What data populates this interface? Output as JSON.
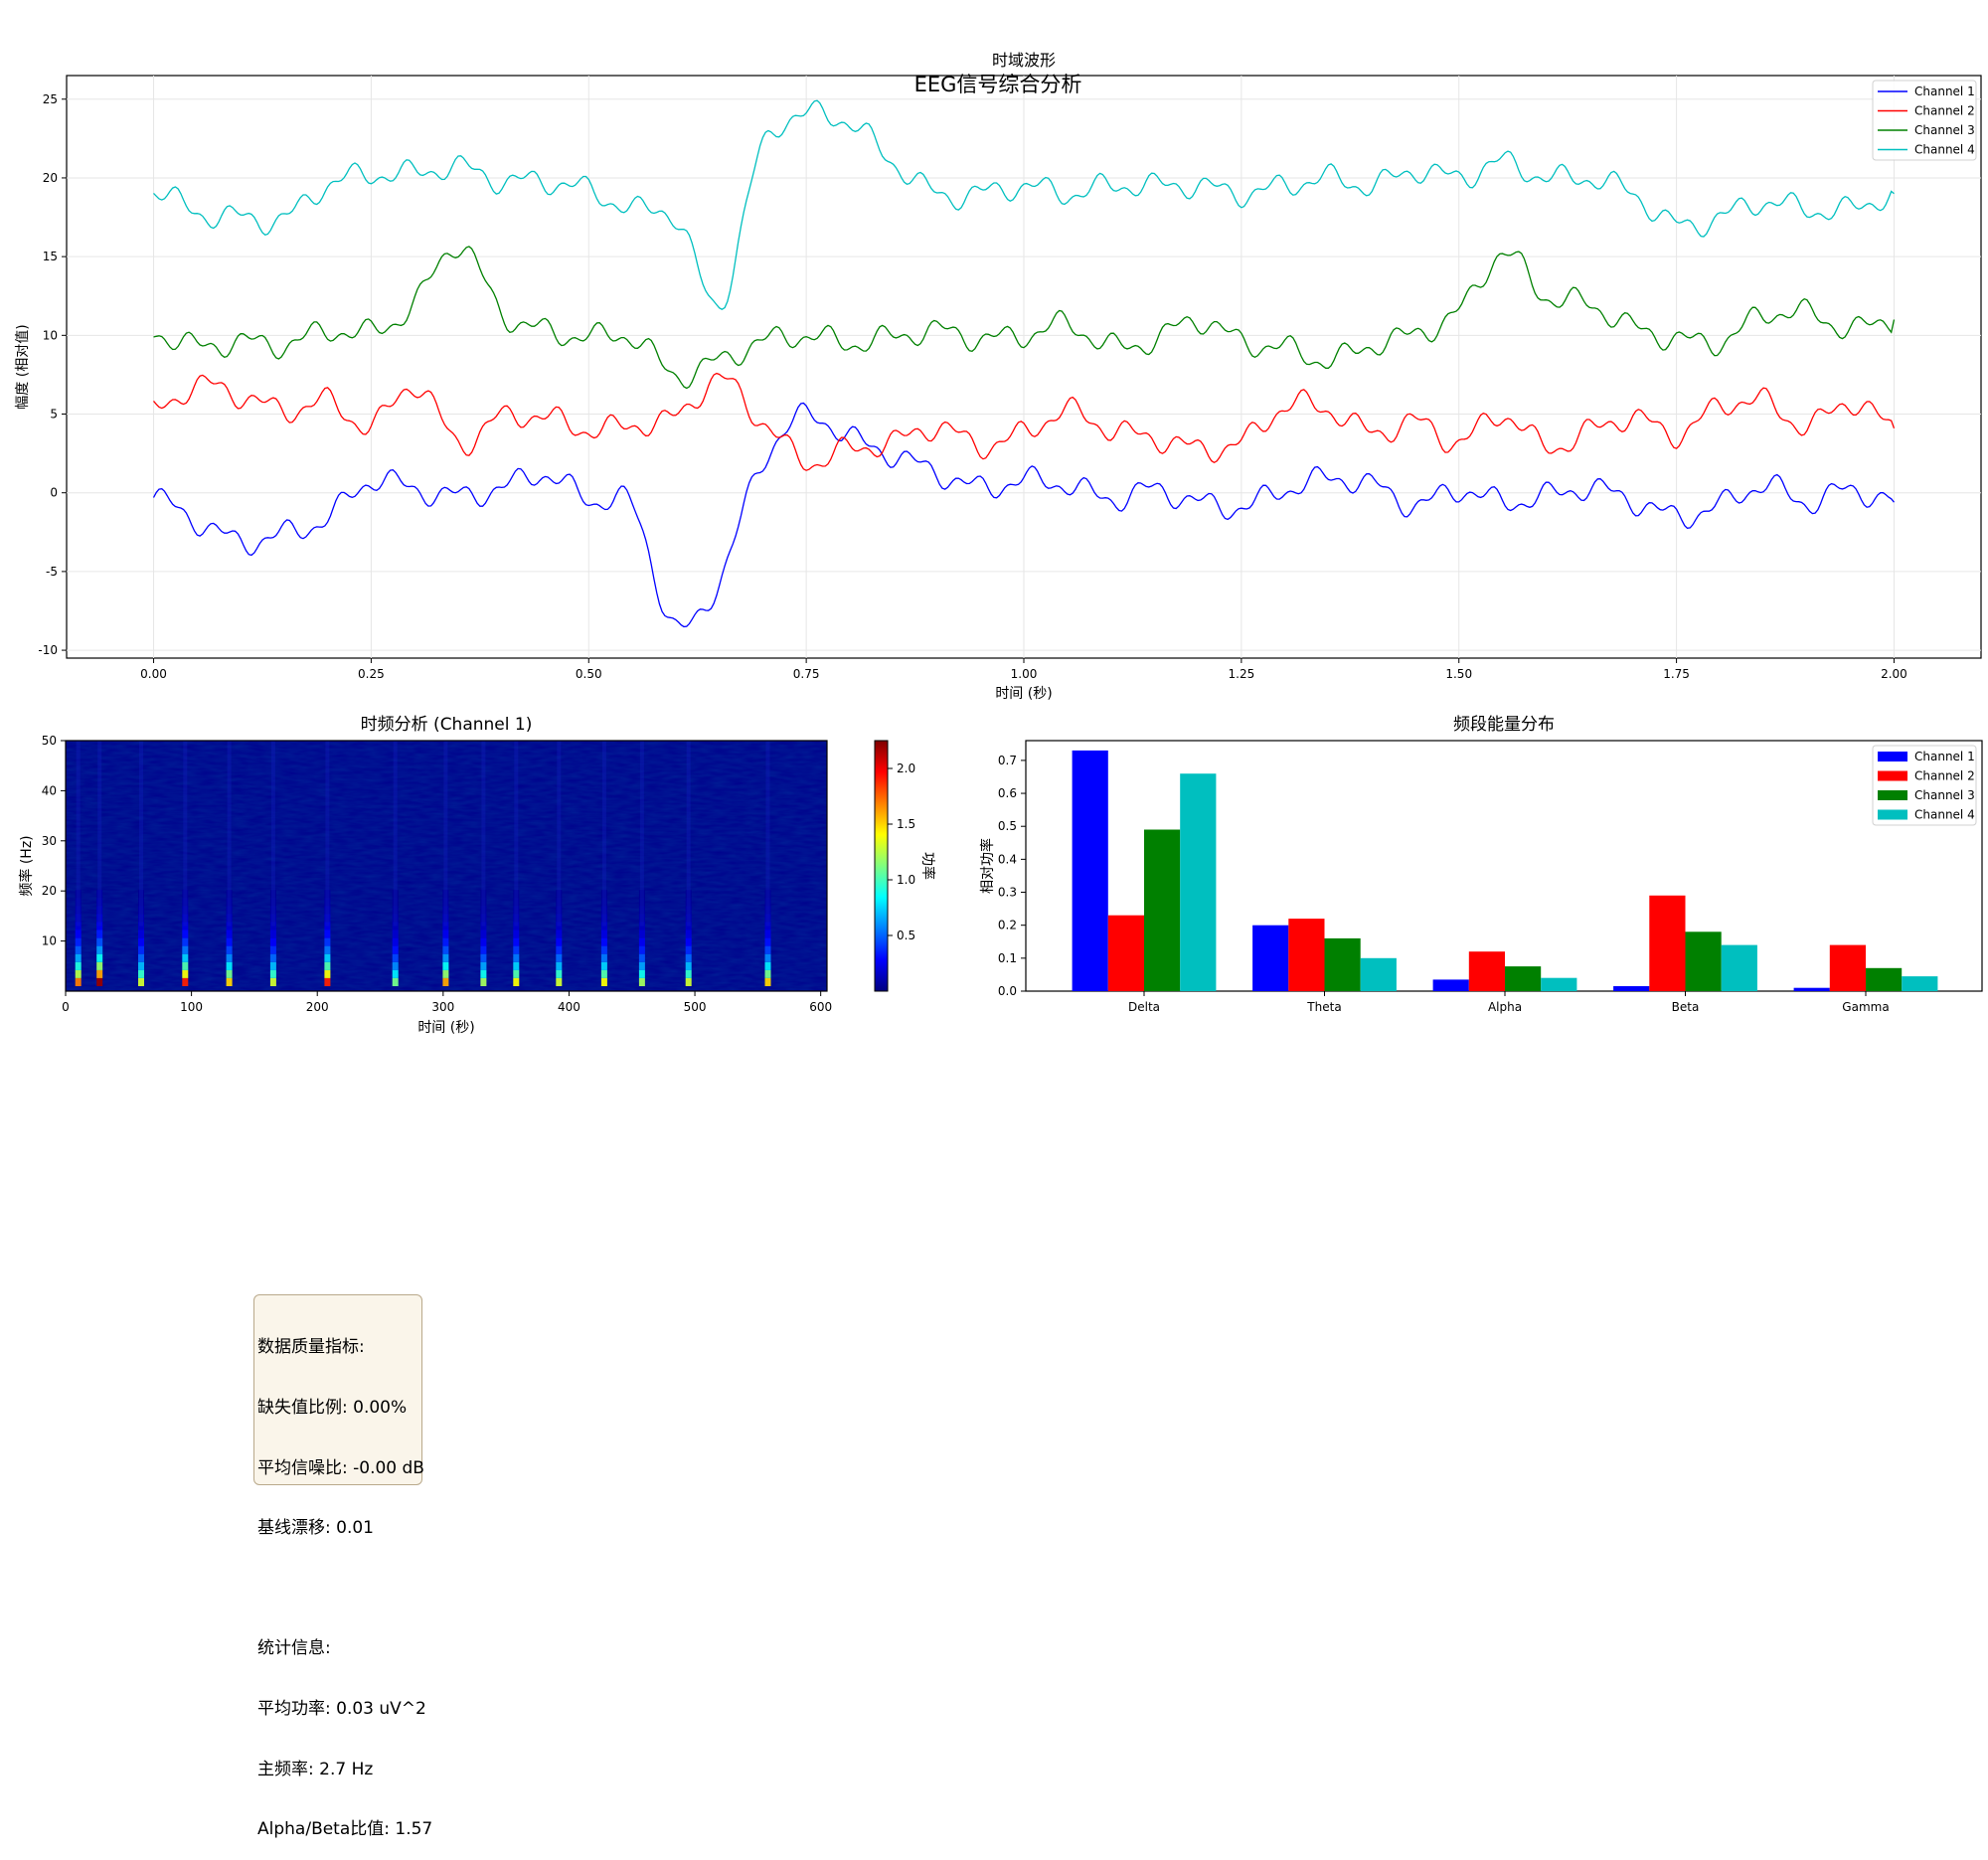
{
  "suptitle": "EEG信号综合分析",
  "chart_data": [
    {
      "type": "line",
      "title": "时域波形",
      "xlabel": "时间 (秒)",
      "ylabel": "幅度 (相对值)",
      "xlim": [
        -0.1,
        2.1
      ],
      "ylim": [
        -10.5,
        26.5
      ],
      "xticks": [
        "0.00",
        "0.25",
        "0.50",
        "0.75",
        "1.00",
        "1.25",
        "1.50",
        "1.75",
        "2.00"
      ],
      "yticks": [
        "-10",
        "-5",
        "0",
        "5",
        "10",
        "15",
        "20",
        "25"
      ],
      "grid": true,
      "legend_position": "top-right",
      "x": [
        0.0,
        0.05,
        0.1,
        0.15,
        0.2,
        0.25,
        0.3,
        0.35,
        0.4,
        0.45,
        0.5,
        0.55,
        0.6,
        0.65,
        0.7,
        0.75,
        0.8,
        0.85,
        0.9,
        0.95,
        1.0,
        1.05,
        1.1,
        1.15,
        1.2,
        1.25,
        1.3,
        1.35,
        1.4,
        1.45,
        1.5,
        1.55,
        1.6,
        1.65,
        1.7,
        1.75,
        1.8,
        1.85,
        1.9,
        1.95,
        2.0
      ],
      "series": [
        {
          "name": "Channel 1",
          "color": "#0000ff",
          "values": [
            -0.3,
            -1.8,
            -3.1,
            -2.6,
            -1.6,
            0.8,
            0.2,
            -0.2,
            0.3,
            1.2,
            -0.5,
            -0.9,
            -8.6,
            -5.5,
            2.0,
            4.9,
            3.5,
            2.4,
            1.3,
            0.3,
            0.8,
            0.5,
            -0.4,
            0.2,
            -0.6,
            -0.9,
            0.2,
            0.9,
            0.5,
            -0.8,
            0.2,
            -0.6,
            -0.2,
            0.3,
            -0.5,
            -1.5,
            -0.8,
            0.5,
            -0.6,
            0.2,
            -0.6
          ]
        },
        {
          "name": "Channel 2",
          "color": "#ff0000",
          "values": [
            5.2,
            6.8,
            6.2,
            5.2,
            5.8,
            4.2,
            6.9,
            3.2,
            4.8,
            4.8,
            4.0,
            4.3,
            4.8,
            7.2,
            4.5,
            2.0,
            2.8,
            3.2,
            4.2,
            3.0,
            3.8,
            5.2,
            4.0,
            3.5,
            2.8,
            3.2,
            5.5,
            5.3,
            3.8,
            4.5,
            3.2,
            5.0,
            2.9,
            3.9,
            4.8,
            3.7,
            5.5,
            5.8,
            4.2,
            5.8,
            4.1
          ]
        },
        {
          "name": "Channel 3",
          "color": "#008000",
          "values": [
            10.2,
            9.3,
            9.6,
            9.4,
            10.3,
            10.2,
            12.0,
            15.8,
            11.5,
            10.3,
            9.9,
            9.9,
            7.5,
            8.4,
            9.6,
            10.0,
            9.5,
            9.9,
            10.3,
            9.8,
            10.0,
            10.7,
            9.3,
            9.7,
            11.0,
            9.6,
            9.2,
            8.4,
            9.4,
            10.1,
            11.5,
            15.2,
            12.5,
            12.0,
            10.5,
            9.8,
            9.6,
            11.3,
            11.4,
            10.4,
            11.0
          ]
        },
        {
          "name": "Channel 4",
          "color": "#00bfbf",
          "values": [
            19.3,
            17.8,
            17.5,
            17.4,
            19.6,
            20.2,
            20.3,
            20.7,
            19.8,
            19.8,
            19.2,
            18.0,
            17.5,
            12.0,
            22.0,
            24.0,
            23.5,
            21.0,
            19.0,
            19.0,
            19.5,
            19.0,
            19.5,
            19.5,
            19.5,
            19.0,
            19.5,
            20.0,
            19.5,
            20.5,
            20.0,
            21.0,
            20.0,
            20.0,
            19.0,
            17.0,
            17.5,
            18.5,
            18.0,
            18.0,
            19.0
          ]
        }
      ]
    },
    {
      "type": "heatmap",
      "title": "时频分析 (Channel 1)",
      "xlabel": "时间 (秒)",
      "ylabel": "频率 (Hz)",
      "xlim": [
        0,
        605
      ],
      "ylim": [
        0,
        50
      ],
      "xticks": [
        "0",
        "100",
        "200",
        "300",
        "400",
        "500",
        "600"
      ],
      "yticks": [
        "10",
        "20",
        "30",
        "40",
        "50"
      ],
      "colorbar_label": "功率",
      "colorbar_ticks": [
        "0.5",
        "1.0",
        "1.5",
        "2.0"
      ],
      "colorbar_range": [
        0.0,
        2.25
      ],
      "colormap": "jet",
      "bursts": [
        {
          "t": 10,
          "peak": 1.7
        },
        {
          "t": 27,
          "peak": 2.2
        },
        {
          "t": 60,
          "peak": 1.3
        },
        {
          "t": 95,
          "peak": 1.9
        },
        {
          "t": 130,
          "peak": 1.5
        },
        {
          "t": 165,
          "peak": 1.3
        },
        {
          "t": 208,
          "peak": 1.9
        },
        {
          "t": 262,
          "peak": 1.1
        },
        {
          "t": 302,
          "peak": 1.6
        },
        {
          "t": 332,
          "peak": 1.2
        },
        {
          "t": 358,
          "peak": 1.4
        },
        {
          "t": 392,
          "peak": 1.3
        },
        {
          "t": 428,
          "peak": 1.4
        },
        {
          "t": 458,
          "peak": 1.2
        },
        {
          "t": 495,
          "peak": 1.3
        },
        {
          "t": 558,
          "peak": 1.5
        }
      ]
    },
    {
      "type": "bar",
      "title": "频段能量分布",
      "ylabel": "相对功率",
      "categories": [
        "Delta",
        "Theta",
        "Alpha",
        "Beta",
        "Gamma"
      ],
      "ylim": [
        0,
        0.76
      ],
      "yticks": [
        "0.0",
        "0.1",
        "0.2",
        "0.3",
        "0.4",
        "0.5",
        "0.6",
        "0.7"
      ],
      "legend_position": "top-right",
      "series": [
        {
          "name": "Channel 1",
          "color": "#0000ff",
          "values": [
            0.73,
            0.2,
            0.035,
            0.015,
            0.01
          ]
        },
        {
          "name": "Channel 2",
          "color": "#ff0000",
          "values": [
            0.23,
            0.22,
            0.12,
            0.29,
            0.14
          ]
        },
        {
          "name": "Channel 3",
          "color": "#008000",
          "values": [
            0.49,
            0.16,
            0.075,
            0.18,
            0.07
          ]
        },
        {
          "name": "Channel 4",
          "color": "#00bfbf",
          "values": [
            0.66,
            0.1,
            0.04,
            0.14,
            0.045
          ]
        }
      ]
    }
  ],
  "stats_box": {
    "lines": [
      "数据质量指标:",
      "缺失值比例: 0.00%",
      "平均信噪比: -0.00 dB",
      "基线漂移: 0.01",
      "",
      "统计信息:",
      "平均功率: 0.03 uV^2",
      "主频率: 2.7 Hz",
      "Alpha/Beta比值: 1.57"
    ]
  }
}
